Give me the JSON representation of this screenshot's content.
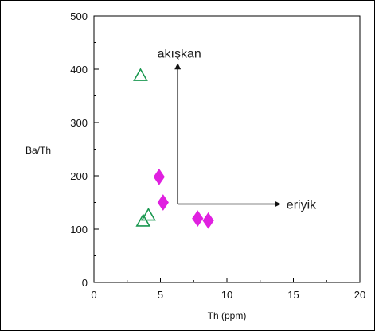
{
  "chart_data": {
    "type": "scatter",
    "title": "",
    "xlabel": "Th (ppm)",
    "ylabel": "Ba/Th",
    "xlim": [
      0,
      20
    ],
    "ylim": [
      0,
      500
    ],
    "x_ticks": [
      0,
      5,
      10,
      15,
      20
    ],
    "y_ticks": [
      0,
      100,
      200,
      300,
      400,
      500
    ],
    "grid": false,
    "series": [
      {
        "marker": "open-triangle",
        "color": "#1a9850",
        "points": [
          {
            "x": 3.5,
            "y": 388
          },
          {
            "x": 4.1,
            "y": 126
          },
          {
            "x": 3.7,
            "y": 115
          }
        ]
      },
      {
        "marker": "filled-diamond",
        "color": "#e020e0",
        "points": [
          {
            "x": 4.9,
            "y": 198
          },
          {
            "x": 5.2,
            "y": 150
          },
          {
            "x": 7.8,
            "y": 120
          },
          {
            "x": 8.6,
            "y": 116
          }
        ]
      }
    ],
    "annotations": [
      {
        "label": "akışkan",
        "arrow_from": {
          "x": 6.3,
          "y": 147
        },
        "arrow_to": {
          "x": 6.3,
          "y": 410
        }
      },
      {
        "label": "eriyik",
        "arrow_from": {
          "x": 6.3,
          "y": 147
        },
        "arrow_to": {
          "x": 14.0,
          "y": 147
        }
      }
    ]
  }
}
